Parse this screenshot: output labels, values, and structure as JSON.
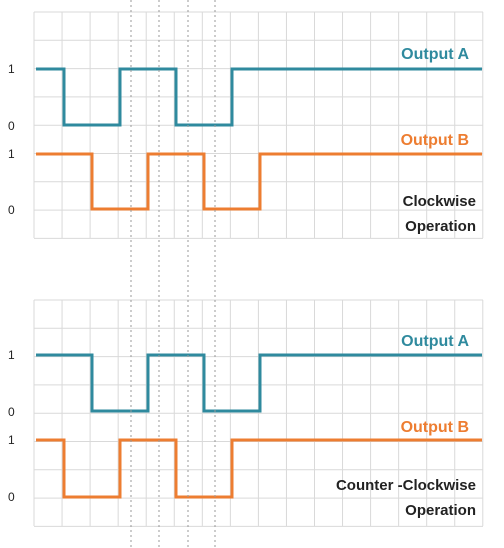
{
  "colors": {
    "output_a": "#2f8a9e",
    "output_b": "#ed7d31",
    "grid": "#d9d9d9",
    "guide": "#999999"
  },
  "panels": [
    {
      "caption_line1": "Clockwise",
      "caption_line2": "Operation",
      "signals": [
        {
          "label": "Output A",
          "high_label": "1",
          "low_label": "0",
          "waveform": [
            1,
            0,
            0,
            1,
            1,
            0,
            0,
            1,
            1,
            1,
            1,
            1,
            1,
            1,
            1,
            1
          ]
        },
        {
          "label": "Output B",
          "high_label": "1",
          "low_label": "0",
          "waveform": [
            1,
            1,
            0,
            0,
            1,
            1,
            0,
            0,
            1,
            1,
            1,
            1,
            1,
            1,
            1,
            1
          ]
        }
      ]
    },
    {
      "caption_line1": "Counter -Clockwise",
      "caption_line2": "Operation",
      "signals": [
        {
          "label": "Output A",
          "high_label": "1",
          "low_label": "0",
          "waveform": [
            1,
            1,
            0,
            0,
            1,
            1,
            0,
            0,
            1,
            1,
            1,
            1,
            1,
            1,
            1,
            1
          ]
        },
        {
          "label": "Output B",
          "high_label": "1",
          "low_label": "0",
          "waveform": [
            1,
            0,
            0,
            1,
            1,
            0,
            0,
            1,
            1,
            1,
            1,
            1,
            1,
            1,
            1,
            1
          ]
        }
      ]
    }
  ]
}
